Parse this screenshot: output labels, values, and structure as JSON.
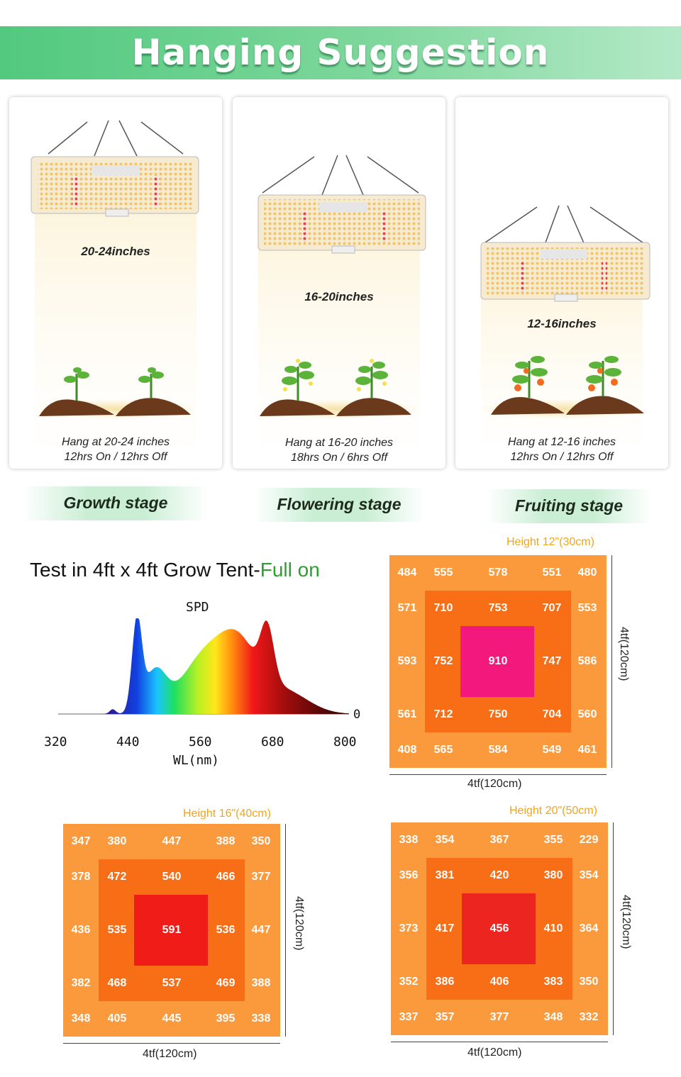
{
  "banner": {
    "title": "Hanging Suggestion"
  },
  "stages": [
    {
      "distance": "20-24inches",
      "hang": "Hang at 20-24 inches",
      "schedule": "12hrs On / 12hrs Off",
      "name": "Growth stage"
    },
    {
      "distance": "16-20inches",
      "hang": "Hang at 16-20 inches",
      "schedule": "18hrs On / 6hrs Off",
      "name": "Flowering stage"
    },
    {
      "distance": "12-16inches",
      "hang": "Hang at 12-16 inches",
      "schedule": "12hrs On / 12hrs Off",
      "name": "Fruiting stage"
    }
  ],
  "test": {
    "title_prefix": "Test in 4ft x 4ft Grow Tent-",
    "title_suffix": "Full on"
  },
  "spd": {
    "title": "SPD",
    "xlabel": "WL(nm)",
    "ticks": [
      "320",
      "440",
      "560",
      "680",
      "800"
    ],
    "zero": "0"
  },
  "grids": [
    {
      "height": "Height 12\"(30cm)",
      "width_label": "4tf(120cm)",
      "depth_label": "4tf(120cm)",
      "rows": [
        [
          "484",
          "555",
          "578",
          "551",
          "480"
        ],
        [
          "571",
          "710",
          "753",
          "707",
          "553"
        ],
        [
          "593",
          "752",
          "910",
          "747",
          "586"
        ],
        [
          "561",
          "712",
          "750",
          "704",
          "560"
        ],
        [
          "408",
          "565",
          "584",
          "549",
          "461"
        ]
      ],
      "center_color": "#f3197c"
    },
    {
      "height": "Height 16\"(40cm)",
      "width_label": "4tf(120cm)",
      "depth_label": "4tf(120cm)",
      "rows": [
        [
          "347",
          "380",
          "447",
          "388",
          "350"
        ],
        [
          "378",
          "472",
          "540",
          "466",
          "377"
        ],
        [
          "436",
          "535",
          "591",
          "536",
          "447"
        ],
        [
          "382",
          "468",
          "537",
          "469",
          "388"
        ],
        [
          "348",
          "405",
          "445",
          "395",
          "338"
        ]
      ],
      "center_color": "#ef1c17"
    },
    {
      "height": "Height 20\"(50cm)",
      "width_label": "4tf(120cm)",
      "depth_label": "4tf(120cm)",
      "rows": [
        [
          "338",
          "354",
          "367",
          "355",
          "229"
        ],
        [
          "356",
          "381",
          "420",
          "380",
          "354"
        ],
        [
          "373",
          "417",
          "456",
          "410",
          "364"
        ],
        [
          "352",
          "386",
          "406",
          "383",
          "350"
        ],
        [
          "337",
          "357",
          "377",
          "348",
          "332"
        ]
      ],
      "center_color": "#ec2520"
    }
  ],
  "icons": [
    "grow-light-panel-icon",
    "seedling-icon",
    "flowering-plant-icon",
    "fruiting-plant-icon",
    "soil-mound-icon"
  ]
}
